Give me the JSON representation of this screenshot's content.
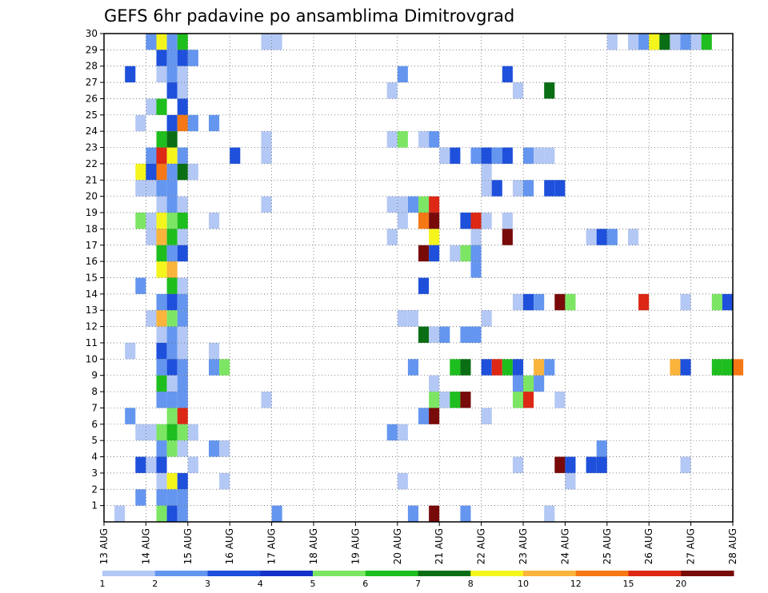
{
  "chart_data": {
    "type": "heatmap",
    "title": "GEFS 6hr padavine po ansamblima Dimitrovgrad",
    "xlabel": "",
    "ylabel": "",
    "x_ticks": [
      "13 AUG",
      "14 AUG",
      "15 AUG",
      "16 AUG",
      "17 AUG",
      "18 AUG",
      "19 AUG",
      "20 AUG",
      "21 AUG",
      "22 AUG",
      "23 AUG",
      "24 AUG",
      "25 AUG",
      "26 AUG",
      "27 AUG",
      "28 AUG"
    ],
    "y_ticks": [
      "1",
      "2",
      "3",
      "4",
      "5",
      "6",
      "7",
      "8",
      "9",
      "10",
      "11",
      "12",
      "13",
      "14",
      "15",
      "16",
      "17",
      "18",
      "19",
      "20",
      "21",
      "22",
      "23",
      "24",
      "25",
      "26",
      "27",
      "28",
      "29",
      "30"
    ],
    "x_range": [
      "13 AUG 00z",
      "28 AUG 00z"
    ],
    "y_range": [
      0,
      30
    ],
    "time_step_hours": 6,
    "grid": true,
    "colorbar": {
      "position": "bottom",
      "levels": [
        "1",
        "2",
        "3",
        "4",
        "5",
        "6",
        "7",
        "8",
        "10",
        "12",
        "15",
        "20"
      ],
      "colors": [
        "#b4c8f5",
        "#6496f0",
        "#1e50dc",
        "#1432c8",
        "#7ce664",
        "#1ebe1e",
        "#0a6e14",
        "#f5f51e",
        "#fab43c",
        "#f57814",
        "#dc2814",
        "#780a0a"
      ]
    },
    "cells": [
      {
        "t": "14 AUG 00z",
        "m": 30,
        "c": 1
      },
      {
        "t": "14 AUG 06z",
        "m": 30,
        "c": 7
      },
      {
        "t": "14 AUG 12z",
        "m": 30,
        "c": 1
      },
      {
        "t": "14 AUG 18z",
        "m": 30,
        "c": 5
      },
      {
        "t": "16 AUG 18z",
        "m": 30,
        "c": 0
      },
      {
        "t": "17 AUG 00z",
        "m": 30,
        "c": 0
      },
      {
        "t": "25 AUG 00z",
        "m": 30,
        "c": 0
      },
      {
        "t": "25 AUG 12z",
        "m": 30,
        "c": 0
      },
      {
        "t": "25 AUG 18z",
        "m": 30,
        "c": 1
      },
      {
        "t": "26 AUG 00z",
        "m": 30,
        "c": 7
      },
      {
        "t": "26 AUG 06z",
        "m": 30,
        "c": 6
      },
      {
        "t": "26 AUG 12z",
        "m": 30,
        "c": 0
      },
      {
        "t": "26 AUG 18z",
        "m": 30,
        "c": 1
      },
      {
        "t": "27 AUG 00z",
        "m": 30,
        "c": 0
      },
      {
        "t": "27 AUG 06z",
        "m": 30,
        "c": 5
      },
      {
        "t": "14 AUG 06z",
        "m": 29,
        "c": 2
      },
      {
        "t": "14 AUG 12z",
        "m": 29,
        "c": 1
      },
      {
        "t": "14 AUG 18z",
        "m": 29,
        "c": 2
      },
      {
        "t": "15 AUG 00z",
        "m": 29,
        "c": 1
      },
      {
        "t": "13 AUG 12z",
        "m": 28,
        "c": 2
      },
      {
        "t": "14 AUG 06z",
        "m": 28,
        "c": 0
      },
      {
        "t": "14 AUG 12z",
        "m": 28,
        "c": 1
      },
      {
        "t": "14 AUG 18z",
        "m": 28,
        "c": 0
      },
      {
        "t": "20 AUG 00z",
        "m": 28,
        "c": 1
      },
      {
        "t": "22 AUG 12z",
        "m": 28,
        "c": 2
      },
      {
        "t": "14 AUG 12z",
        "m": 27,
        "c": 2
      },
      {
        "t": "14 AUG 18z",
        "m": 27,
        "c": 0
      },
      {
        "t": "19 AUG 18z",
        "m": 27,
        "c": 0
      },
      {
        "t": "22 AUG 18z",
        "m": 27,
        "c": 0
      },
      {
        "t": "23 AUG 12z",
        "m": 27,
        "c": 6
      },
      {
        "t": "14 AUG 00z",
        "m": 26,
        "c": 0
      },
      {
        "t": "14 AUG 06z",
        "m": 26,
        "c": 5
      },
      {
        "t": "14 AUG 18z",
        "m": 26,
        "c": 2
      },
      {
        "t": "13 AUG 18z",
        "m": 25,
        "c": 0
      },
      {
        "t": "14 AUG 12z",
        "m": 25,
        "c": 2
      },
      {
        "t": "14 AUG 18z",
        "m": 25,
        "c": 9
      },
      {
        "t": "15 AUG 00z",
        "m": 25,
        "c": 1
      },
      {
        "t": "15 AUG 12z",
        "m": 25,
        "c": 1
      },
      {
        "t": "14 AUG 06z",
        "m": 24,
        "c": 5
      },
      {
        "t": "14 AUG 12z",
        "m": 24,
        "c": 6
      },
      {
        "t": "16 AUG 18z",
        "m": 24,
        "c": 0
      },
      {
        "t": "19 AUG 18z",
        "m": 24,
        "c": 0
      },
      {
        "t": "20 AUG 00z",
        "m": 24,
        "c": 4
      },
      {
        "t": "20 AUG 12z",
        "m": 24,
        "c": 0
      },
      {
        "t": "20 AUG 18z",
        "m": 24,
        "c": 1
      },
      {
        "t": "14 AUG 00z",
        "m": 23,
        "c": 1
      },
      {
        "t": "14 AUG 06z",
        "m": 23,
        "c": 10
      },
      {
        "t": "14 AUG 12z",
        "m": 23,
        "c": 7
      },
      {
        "t": "14 AUG 18z",
        "m": 23,
        "c": 1
      },
      {
        "t": "16 AUG 00z",
        "m": 23,
        "c": 2
      },
      {
        "t": "16 AUG 18z",
        "m": 23,
        "c": 0
      },
      {
        "t": "21 AUG 00z",
        "m": 23,
        "c": 0
      },
      {
        "t": "21 AUG 06z",
        "m": 23,
        "c": 2
      },
      {
        "t": "21 AUG 18z",
        "m": 23,
        "c": 1
      },
      {
        "t": "22 AUG 00z",
        "m": 23,
        "c": 2
      },
      {
        "t": "22 AUG 06z",
        "m": 23,
        "c": 1
      },
      {
        "t": "22 AUG 12z",
        "m": 23,
        "c": 2
      },
      {
        "t": "23 AUG 00z",
        "m": 23,
        "c": 1
      },
      {
        "t": "23 AUG 06z",
        "m": 23,
        "c": 0
      },
      {
        "t": "23 AUG 12z",
        "m": 23,
        "c": 0
      },
      {
        "t": "13 AUG 18z",
        "m": 22,
        "c": 7
      },
      {
        "t": "14 AUG 00z",
        "m": 22,
        "c": 2
      },
      {
        "t": "14 AUG 06z",
        "m": 22,
        "c": 9
      },
      {
        "t": "14 AUG 12z",
        "m": 22,
        "c": 1
      },
      {
        "t": "14 AUG 18z",
        "m": 22,
        "c": 6
      },
      {
        "t": "15 AUG 00z",
        "m": 22,
        "c": 0
      },
      {
        "t": "22 AUG 00z",
        "m": 22,
        "c": 0
      },
      {
        "t": "13 AUG 18z",
        "m": 21,
        "c": 0
      },
      {
        "t": "14 AUG 00z",
        "m": 21,
        "c": 0
      },
      {
        "t": "14 AUG 06z",
        "m": 21,
        "c": 1
      },
      {
        "t": "14 AUG 12z",
        "m": 21,
        "c": 1
      },
      {
        "t": "22 AUG 00z",
        "m": 21,
        "c": 0
      },
      {
        "t": "22 AUG 06z",
        "m": 21,
        "c": 2
      },
      {
        "t": "22 AUG 18z",
        "m": 21,
        "c": 0
      },
      {
        "t": "23 AUG 00z",
        "m": 21,
        "c": 1
      },
      {
        "t": "23 AUG 12z",
        "m": 21,
        "c": 2
      },
      {
        "t": "23 AUG 18z",
        "m": 21,
        "c": 2
      },
      {
        "t": "14 AUG 06z",
        "m": 20,
        "c": 0
      },
      {
        "t": "14 AUG 12z",
        "m": 20,
        "c": 1
      },
      {
        "t": "14 AUG 18z",
        "m": 20,
        "c": 0
      },
      {
        "t": "16 AUG 18z",
        "m": 20,
        "c": 0
      },
      {
        "t": "19 AUG 18z",
        "m": 20,
        "c": 0
      },
      {
        "t": "20 AUG 00z",
        "m": 20,
        "c": 0
      },
      {
        "t": "20 AUG 06z",
        "m": 20,
        "c": 1
      },
      {
        "t": "20 AUG 12z",
        "m": 20,
        "c": 4
      },
      {
        "t": "20 AUG 18z",
        "m": 20,
        "c": 10
      },
      {
        "t": "13 AUG 18z",
        "m": 19,
        "c": 4
      },
      {
        "t": "14 AUG 00z",
        "m": 19,
        "c": 0
      },
      {
        "t": "14 AUG 06z",
        "m": 19,
        "c": 7
      },
      {
        "t": "14 AUG 12z",
        "m": 19,
        "c": 4
      },
      {
        "t": "14 AUG 18z",
        "m": 19,
        "c": 5
      },
      {
        "t": "15 AUG 12z",
        "m": 19,
        "c": 0
      },
      {
        "t": "20 AUG 00z",
        "m": 19,
        "c": 0
      },
      {
        "t": "20 AUG 12z",
        "m": 19,
        "c": 9
      },
      {
        "t": "20 AUG 18z",
        "m": 19,
        "c": 11
      },
      {
        "t": "21 AUG 12z",
        "m": 19,
        "c": 2
      },
      {
        "t": "21 AUG 18z",
        "m": 19,
        "c": 10
      },
      {
        "t": "22 AUG 00z",
        "m": 19,
        "c": 0
      },
      {
        "t": "22 AUG 12z",
        "m": 19,
        "c": 0
      },
      {
        "t": "14 AUG 00z",
        "m": 18,
        "c": 0
      },
      {
        "t": "14 AUG 06z",
        "m": 18,
        "c": 8
      },
      {
        "t": "14 AUG 12z",
        "m": 18,
        "c": 5
      },
      {
        "t": "14 AUG 18z",
        "m": 18,
        "c": 0
      },
      {
        "t": "19 AUG 18z",
        "m": 18,
        "c": 0
      },
      {
        "t": "20 AUG 18z",
        "m": 18,
        "c": 7
      },
      {
        "t": "21 AUG 18z",
        "m": 18,
        "c": 0
      },
      {
        "t": "22 AUG 12z",
        "m": 18,
        "c": 11
      },
      {
        "t": "24 AUG 12z",
        "m": 18,
        "c": 0
      },
      {
        "t": "24 AUG 18z",
        "m": 18,
        "c": 2
      },
      {
        "t": "25 AUG 00z",
        "m": 18,
        "c": 1
      },
      {
        "t": "25 AUG 12z",
        "m": 18,
        "c": 0
      },
      {
        "t": "14 AUG 06z",
        "m": 17,
        "c": 5
      },
      {
        "t": "14 AUG 12z",
        "m": 17,
        "c": 1
      },
      {
        "t": "14 AUG 18z",
        "m": 17,
        "c": 2
      },
      {
        "t": "20 AUG 12z",
        "m": 17,
        "c": 11
      },
      {
        "t": "20 AUG 18z",
        "m": 17,
        "c": 2
      },
      {
        "t": "21 AUG 06z",
        "m": 17,
        "c": 0
      },
      {
        "t": "21 AUG 12z",
        "m": 17,
        "c": 4
      },
      {
        "t": "21 AUG 18z",
        "m": 17,
        "c": 1
      },
      {
        "t": "14 AUG 06z",
        "m": 16,
        "c": 7
      },
      {
        "t": "14 AUG 12z",
        "m": 16,
        "c": 8
      },
      {
        "t": "21 AUG 18z",
        "m": 16,
        "c": 1
      },
      {
        "t": "13 AUG 18z",
        "m": 15,
        "c": 1
      },
      {
        "t": "14 AUG 12z",
        "m": 15,
        "c": 5
      },
      {
        "t": "14 AUG 18z",
        "m": 15,
        "c": 0
      },
      {
        "t": "20 AUG 12z",
        "m": 15,
        "c": 2
      },
      {
        "t": "14 AUG 06z",
        "m": 14,
        "c": 1
      },
      {
        "t": "14 AUG 12z",
        "m": 14,
        "c": 2
      },
      {
        "t": "14 AUG 18z",
        "m": 14,
        "c": 1
      },
      {
        "t": "22 AUG 18z",
        "m": 14,
        "c": 0
      },
      {
        "t": "23 AUG 00z",
        "m": 14,
        "c": 2
      },
      {
        "t": "23 AUG 06z",
        "m": 14,
        "c": 1
      },
      {
        "t": "23 AUG 18z",
        "m": 14,
        "c": 11
      },
      {
        "t": "24 AUG 00z",
        "m": 14,
        "c": 4
      },
      {
        "t": "25 AUG 18z",
        "m": 14,
        "c": 10
      },
      {
        "t": "26 AUG 18z",
        "m": 14,
        "c": 0
      },
      {
        "t": "27 AUG 12z",
        "m": 14,
        "c": 4
      },
      {
        "t": "27 AUG 18z",
        "m": 14,
        "c": 2
      },
      {
        "t": "14 AUG 00z",
        "m": 13,
        "c": 0
      },
      {
        "t": "14 AUG 06z",
        "m": 13,
        "c": 8
      },
      {
        "t": "14 AUG 12z",
        "m": 13,
        "c": 4
      },
      {
        "t": "14 AUG 18z",
        "m": 13,
        "c": 1
      },
      {
        "t": "20 AUG 00z",
        "m": 13,
        "c": 0
      },
      {
        "t": "20 AUG 06z",
        "m": 13,
        "c": 0
      },
      {
        "t": "22 AUG 00z",
        "m": 13,
        "c": 0
      },
      {
        "t": "14 AUG 06z",
        "m": 12,
        "c": 0
      },
      {
        "t": "14 AUG 12z",
        "m": 12,
        "c": 1
      },
      {
        "t": "14 AUG 18z",
        "m": 12,
        "c": 0
      },
      {
        "t": "20 AUG 12z",
        "m": 12,
        "c": 6
      },
      {
        "t": "20 AUG 18z",
        "m": 12,
        "c": 0
      },
      {
        "t": "21 AUG 00z",
        "m": 12,
        "c": 1
      },
      {
        "t": "21 AUG 12z",
        "m": 12,
        "c": 1
      },
      {
        "t": "21 AUG 18z",
        "m": 12,
        "c": 1
      },
      {
        "t": "13 AUG 12z",
        "m": 11,
        "c": 0
      },
      {
        "t": "14 AUG 06z",
        "m": 11,
        "c": 2
      },
      {
        "t": "14 AUG 12z",
        "m": 11,
        "c": 1
      },
      {
        "t": "14 AUG 18z",
        "m": 11,
        "c": 0
      },
      {
        "t": "15 AUG 12z",
        "m": 11,
        "c": 0
      },
      {
        "t": "14 AUG 06z",
        "m": 10,
        "c": 1
      },
      {
        "t": "14 AUG 12z",
        "m": 10,
        "c": 2
      },
      {
        "t": "14 AUG 18z",
        "m": 10,
        "c": 1
      },
      {
        "t": "15 AUG 12z",
        "m": 10,
        "c": 1
      },
      {
        "t": "15 AUG 18z",
        "m": 10,
        "c": 4
      },
      {
        "t": "20 AUG 06z",
        "m": 10,
        "c": 1
      },
      {
        "t": "21 AUG 06z",
        "m": 10,
        "c": 5
      },
      {
        "t": "21 AUG 12z",
        "m": 10,
        "c": 6
      },
      {
        "t": "22 AUG 00z",
        "m": 10,
        "c": 2
      },
      {
        "t": "22 AUG 06z",
        "m": 10,
        "c": 10
      },
      {
        "t": "22 AUG 12z",
        "m": 10,
        "c": 5
      },
      {
        "t": "22 AUG 18z",
        "m": 10,
        "c": 2
      },
      {
        "t": "23 AUG 06z",
        "m": 10,
        "c": 8
      },
      {
        "t": "23 AUG 12z",
        "m": 10,
        "c": 1
      },
      {
        "t": "26 AUG 12z",
        "m": 10,
        "c": 8
      },
      {
        "t": "26 AUG 18z",
        "m": 10,
        "c": 2
      },
      {
        "t": "27 AUG 12z",
        "m": 10,
        "c": 5
      },
      {
        "t": "27 AUG 18z",
        "m": 10,
        "c": 5
      },
      {
        "t": "28 AUG 00z",
        "m": 10,
        "c": 9
      },
      {
        "t": "14 AUG 06z",
        "m": 9,
        "c": 5
      },
      {
        "t": "14 AUG 12z",
        "m": 9,
        "c": 0
      },
      {
        "t": "14 AUG 18z",
        "m": 9,
        "c": 1
      },
      {
        "t": "20 AUG 18z",
        "m": 9,
        "c": 0
      },
      {
        "t": "22 AUG 18z",
        "m": 9,
        "c": 1
      },
      {
        "t": "23 AUG 00z",
        "m": 9,
        "c": 4
      },
      {
        "t": "23 AUG 06z",
        "m": 9,
        "c": 1
      },
      {
        "t": "14 AUG 06z",
        "m": 8,
        "c": 1
      },
      {
        "t": "14 AUG 12z",
        "m": 8,
        "c": 1
      },
      {
        "t": "14 AUG 18z",
        "m": 8,
        "c": 1
      },
      {
        "t": "16 AUG 18z",
        "m": 8,
        "c": 0
      },
      {
        "t": "20 AUG 18z",
        "m": 8,
        "c": 4
      },
      {
        "t": "21 AUG 00z",
        "m": 8,
        "c": 0
      },
      {
        "t": "21 AUG 06z",
        "m": 8,
        "c": 5
      },
      {
        "t": "21 AUG 12z",
        "m": 8,
        "c": 11
      },
      {
        "t": "22 AUG 18z",
        "m": 8,
        "c": 4
      },
      {
        "t": "23 AUG 00z",
        "m": 8,
        "c": 10
      },
      {
        "t": "23 AUG 18z",
        "m": 8,
        "c": 0
      },
      {
        "t": "13 AUG 12z",
        "m": 7,
        "c": 1
      },
      {
        "t": "14 AUG 12z",
        "m": 7,
        "c": 4
      },
      {
        "t": "14 AUG 18z",
        "m": 7,
        "c": 10
      },
      {
        "t": "20 AUG 12z",
        "m": 7,
        "c": 1
      },
      {
        "t": "20 AUG 18z",
        "m": 7,
        "c": 11
      },
      {
        "t": "22 AUG 00z",
        "m": 7,
        "c": 0
      },
      {
        "t": "13 AUG 18z",
        "m": 6,
        "c": 0
      },
      {
        "t": "14 AUG 00z",
        "m": 6,
        "c": 0
      },
      {
        "t": "14 AUG 06z",
        "m": 6,
        "c": 4
      },
      {
        "t": "14 AUG 12z",
        "m": 6,
        "c": 5
      },
      {
        "t": "14 AUG 18z",
        "m": 6,
        "c": 4
      },
      {
        "t": "15 AUG 00z",
        "m": 6,
        "c": 0
      },
      {
        "t": "19 AUG 18z",
        "m": 6,
        "c": 1
      },
      {
        "t": "20 AUG 00z",
        "m": 6,
        "c": 0
      },
      {
        "t": "14 AUG 06z",
        "m": 5,
        "c": 1
      },
      {
        "t": "14 AUG 12z",
        "m": 5,
        "c": 4
      },
      {
        "t": "14 AUG 18z",
        "m": 5,
        "c": 0
      },
      {
        "t": "15 AUG 12z",
        "m": 5,
        "c": 1
      },
      {
        "t": "15 AUG 18z",
        "m": 5,
        "c": 0
      },
      {
        "t": "24 AUG 18z",
        "m": 5,
        "c": 1
      },
      {
        "t": "13 AUG 18z",
        "m": 4,
        "c": 2
      },
      {
        "t": "14 AUG 00z",
        "m": 4,
        "c": 0
      },
      {
        "t": "14 AUG 06z",
        "m": 4,
        "c": 2
      },
      {
        "t": "15 AUG 00z",
        "m": 4,
        "c": 0
      },
      {
        "t": "22 AUG 18z",
        "m": 4,
        "c": 0
      },
      {
        "t": "23 AUG 18z",
        "m": 4,
        "c": 11
      },
      {
        "t": "24 AUG 00z",
        "m": 4,
        "c": 2
      },
      {
        "t": "24 AUG 12z",
        "m": 4,
        "c": 2
      },
      {
        "t": "24 AUG 18z",
        "m": 4,
        "c": 2
      },
      {
        "t": "26 AUG 18z",
        "m": 4,
        "c": 0
      },
      {
        "t": "14 AUG 06z",
        "m": 3,
        "c": 0
      },
      {
        "t": "14 AUG 12z",
        "m": 3,
        "c": 7
      },
      {
        "t": "14 AUG 18z",
        "m": 3,
        "c": 2
      },
      {
        "t": "15 AUG 18z",
        "m": 3,
        "c": 0
      },
      {
        "t": "20 AUG 00z",
        "m": 3,
        "c": 0
      },
      {
        "t": "24 AUG 00z",
        "m": 3,
        "c": 0
      },
      {
        "t": "13 AUG 18z",
        "m": 2,
        "c": 1
      },
      {
        "t": "14 AUG 06z",
        "m": 2,
        "c": 1
      },
      {
        "t": "14 AUG 12z",
        "m": 2,
        "c": 1
      },
      {
        "t": "14 AUG 18z",
        "m": 2,
        "c": 1
      },
      {
        "t": "13 AUG 06z",
        "m": 1,
        "c": 0
      },
      {
        "t": "14 AUG 06z",
        "m": 1,
        "c": 4
      },
      {
        "t": "14 AUG 12z",
        "m": 1,
        "c": 2
      },
      {
        "t": "14 AUG 18z",
        "m": 1,
        "c": 1
      },
      {
        "t": "17 AUG 00z",
        "m": 1,
        "c": 1
      },
      {
        "t": "20 AUG 06z",
        "m": 1,
        "c": 1
      },
      {
        "t": "20 AUG 18z",
        "m": 1,
        "c": 11
      },
      {
        "t": "21 AUG 12z",
        "m": 1,
        "c": 1
      },
      {
        "t": "23 AUG 12z",
        "m": 1,
        "c": 0
      }
    ]
  }
}
